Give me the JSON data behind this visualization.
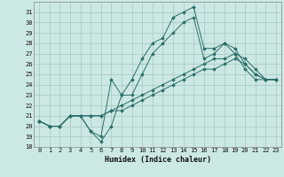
{
  "xlabel": "Humidex (Indice chaleur)",
  "bg_color": "#cce8e4",
  "grid_color": "#9bbfbb",
  "line_color": "#2a6e6a",
  "xlim": [
    -0.5,
    23.5
  ],
  "ylim": [
    18,
    32
  ],
  "yticks": [
    18,
    19,
    20,
    21,
    22,
    23,
    24,
    25,
    26,
    27,
    28,
    29,
    30,
    31
  ],
  "xticks": [
    0,
    1,
    2,
    3,
    4,
    5,
    6,
    7,
    8,
    9,
    10,
    11,
    12,
    13,
    14,
    15,
    16,
    17,
    18,
    19,
    20,
    21,
    22,
    23
  ],
  "series": [
    [
      20.5,
      20.0,
      20.0,
      21.0,
      21.0,
      19.5,
      18.5,
      20.0,
      23.0,
      24.5,
      26.5,
      28.0,
      28.5,
      30.5,
      31.0,
      31.5,
      27.5,
      27.5,
      28.0,
      27.5,
      26.0,
      25.0,
      24.5,
      24.5
    ],
    [
      20.5,
      20.0,
      20.0,
      21.0,
      21.0,
      19.5,
      19.0,
      24.5,
      23.0,
      23.0,
      25.0,
      27.0,
      28.0,
      29.0,
      30.0,
      30.5,
      26.5,
      27.0,
      28.0,
      27.0,
      25.5,
      24.5,
      24.5,
      24.5
    ],
    [
      20.5,
      20.0,
      20.0,
      21.0,
      21.0,
      21.0,
      21.0,
      21.5,
      22.0,
      22.5,
      23.0,
      23.5,
      24.0,
      24.5,
      25.0,
      25.5,
      26.0,
      26.5,
      26.5,
      27.0,
      26.5,
      25.5,
      24.5,
      24.5
    ],
    [
      20.5,
      20.0,
      20.0,
      21.0,
      21.0,
      21.0,
      21.0,
      21.5,
      21.5,
      22.0,
      22.5,
      23.0,
      23.5,
      24.0,
      24.5,
      25.0,
      25.5,
      25.5,
      26.0,
      26.5,
      26.0,
      25.0,
      24.5,
      24.5
    ]
  ]
}
